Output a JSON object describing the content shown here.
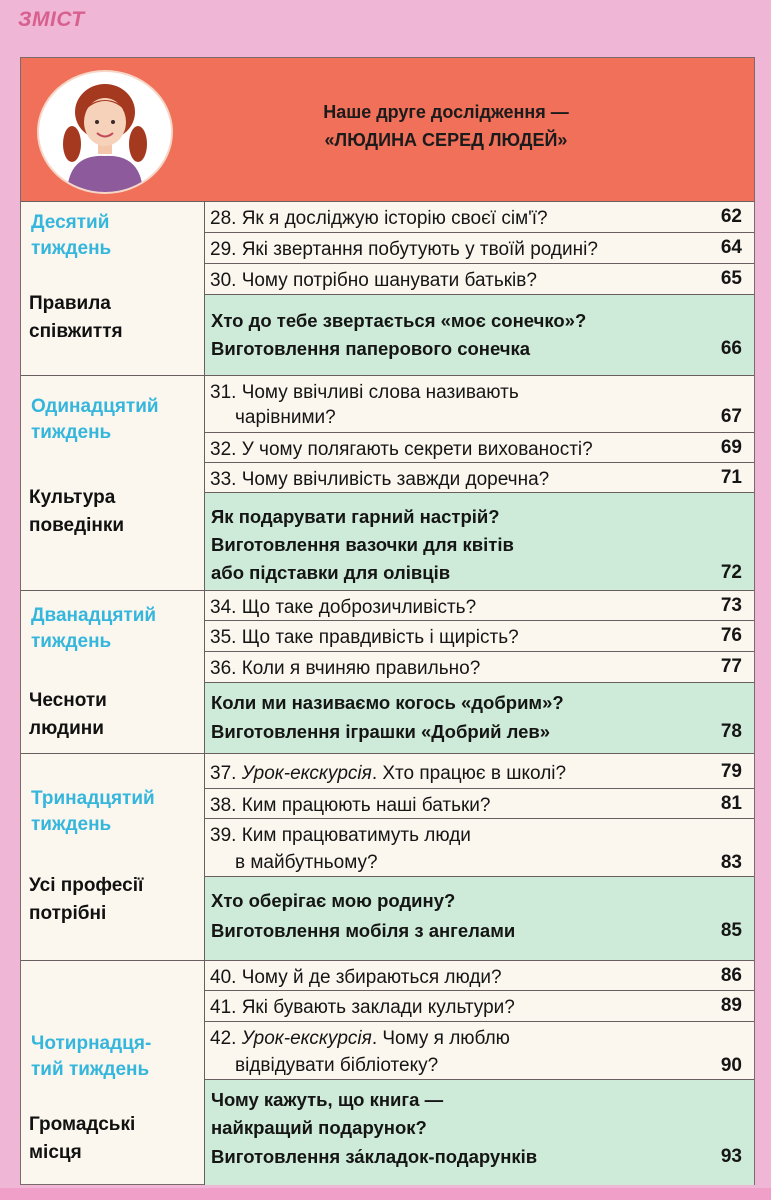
{
  "section_label": "ЗМІСТ",
  "banner": {
    "line1": "Наше друге дослідження —",
    "line2": "«ЛЮДИНА СЕРЕД ЛЮДЕЙ»"
  },
  "weeks": [
    {
      "name1": "Десятий",
      "name2": "тиждень",
      "theme1": "Правила",
      "theme2": "співжиття",
      "lessons": [
        {
          "text": "28. Як я досліджую історію своєї сім'ї?",
          "page": "62"
        },
        {
          "text": "29. Які звертання побутують у твоїй родині?",
          "page": "64"
        },
        {
          "text": "30. Чому потрібно шанувати батьків?",
          "page": "65"
        }
      ],
      "project": {
        "line1": "Хто до тебе звертається «моє сонечко»?",
        "line2": "Виготовлення паперового сонечка",
        "page": "66"
      }
    },
    {
      "name1": "Одинадцятий",
      "name2": "тиждень",
      "theme1": "Культура",
      "theme2": "поведінки",
      "lessons": [
        {
          "text": "31. Чому ввічливі слова називають",
          "text2": "чарівними?",
          "page": "67"
        },
        {
          "text": "32. У чому полягають секрети вихованості?",
          "page": "69"
        },
        {
          "text": "33. Чому ввічливість завжди доречна?",
          "page": "71"
        }
      ],
      "project": {
        "line1": "Як подарувати гарний настрій?",
        "line2": "Виготовлення вазочки для квітів",
        "line3": "або підставки для олівців",
        "page": "72"
      }
    },
    {
      "name1": "Дванадцятий",
      "name2": "тиждень",
      "theme1": "Чесноти",
      "theme2": "людини",
      "lessons": [
        {
          "text": "34. Що таке доброзичливість?",
          "page": "73"
        },
        {
          "text": "35. Що таке правдивість і щирість?",
          "page": "76"
        },
        {
          "text": "36. Коли я вчиняю правильно?",
          "page": "77"
        }
      ],
      "project": {
        "line1": "Коли ми називаємо когось «добрим»?",
        "line2": "Виготовлення іграшки «Добрий лев»",
        "page": "78"
      }
    },
    {
      "name1": "Тринадцятий",
      "name2": "тиждень",
      "theme1": "Усі професії",
      "theme2": "потрібні",
      "lessons": [
        {
          "prefix": "37. ",
          "italic": "Урок-екскурсія",
          "rest": ". Хто працює в школі?",
          "page": "79"
        },
        {
          "text": "38. Ким працюють наші батьки?",
          "page": "81"
        },
        {
          "text": "39. Ким працюватимуть люди",
          "text2": "в майбутньому?",
          "page": "83"
        }
      ],
      "project": {
        "line1": "Хто оберігає мою родину?",
        "line2": "Виготовлення мобіля з ангелами",
        "page": "85"
      }
    },
    {
      "name1": "Чотирнадця-",
      "name2": "тий тиждень",
      "theme1": "Громадські",
      "theme2": "місця",
      "lessons": [
        {
          "text": "40. Чому й де збираються люди?",
          "page": "86"
        },
        {
          "text": "41. Які бувають заклади культури?",
          "page": "89"
        },
        {
          "prefix": "42. ",
          "italic": "Урок-екскурсія",
          "rest": ". Чому я люблю",
          "text2": "відвідувати бібліотеку?",
          "page": "90"
        }
      ],
      "project": {
        "line1": "Чому кажуть, що книга —",
        "line2": "найкращий подарунок?",
        "line3": "Виготовлення за́кладок-подарунків",
        "page": "93"
      }
    }
  ]
}
